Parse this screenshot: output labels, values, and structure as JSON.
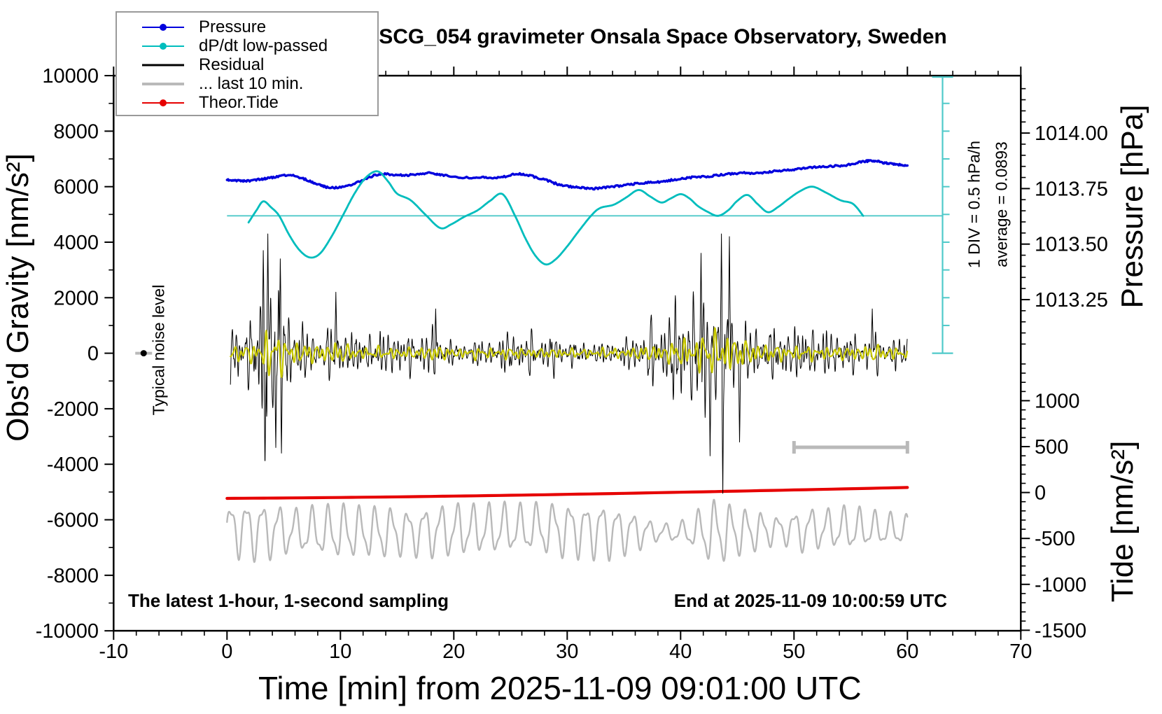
{
  "title": "SCG_054 gravimeter Onsala Space Observatory, Sweden",
  "annotations": {
    "sampling_note": "The latest 1-hour, 1-second sampling",
    "end_note": "End at 2025-11-09 10:00:59 UTC",
    "noise_label": "Typical noise level",
    "div_note": "1 DIV = 0.5 hPa/h",
    "avg_note": "average = 0.0893"
  },
  "legend": {
    "items": [
      {
        "label": "Pressure",
        "color": "#0000dd",
        "marker": true,
        "lw": 2
      },
      {
        "label": "dP/dt low-passed",
        "color": "#00bdbd",
        "marker": true,
        "lw": 2
      },
      {
        "label": "Residual",
        "color": "#000000",
        "marker": false,
        "lw": 3
      },
      {
        "label": "... last 10 min.",
        "color": "#b9b9b9",
        "marker": false,
        "lw": 4
      },
      {
        "label": "Theor.Tide",
        "color": "#e60000",
        "marker": true,
        "lw": 2
      }
    ]
  },
  "axes": {
    "x": {
      "label": "Time [min] from 2025-11-09 09:01:00 UTC",
      "min": -10,
      "max": 70,
      "major_ticks": [
        -10,
        0,
        10,
        20,
        30,
        40,
        50,
        60,
        70
      ],
      "minor_step": 2
    },
    "y_left": {
      "label": "Obs'd Gravity [nm/s²]",
      "min": -10000,
      "max": 10000,
      "major_ticks": [
        10000,
        8000,
        6000,
        4000,
        2000,
        0,
        -2000,
        -4000,
        -6000,
        -8000,
        -10000
      ],
      "minor_step": 1000
    },
    "y_right_pressure": {
      "label": "Pressure [hPa]",
      "major_ticks": [
        1014.0,
        1013.75,
        1013.5,
        1013.25
      ],
      "tick_labels": [
        "1014.00",
        "1013.75",
        "1013.50",
        "1013.25"
      ],
      "minor_step": 0.05
    },
    "y_right_tide": {
      "label": "Tide [nm/s²]",
      "major_ticks": [
        1000,
        500,
        0,
        -500,
        -1000,
        -1500
      ],
      "minor_step": 100
    }
  },
  "colors": {
    "pressure": "#0000dd",
    "dpdt": "#00bdbd",
    "dpdt_ref": "#4fc9c9",
    "residual": "#000000",
    "residual_lowpass": "#c9c900",
    "last10": "#b9b9b9",
    "theor_tide": "#e60000",
    "legend_border": "#9a9a9a"
  },
  "chart_data": {
    "type": "line",
    "title": "SCG_054 gravimeter Onsala Space Observatory, Sweden",
    "xlabel": "Time [min] from 2025-11-09 09:01:00 UTC",
    "x_range_min": [
      -10,
      70
    ],
    "gravity_axis_range": [
      -10000,
      10000
    ],
    "pressure_axis_ticks": [
      1014.0,
      1013.75,
      1013.5,
      1013.25
    ],
    "tide_axis_range": [
      -1500,
      1500
    ],
    "legend_position": "top-left",
    "grid": false,
    "seed": 54,
    "series": [
      {
        "name": "Pressure",
        "axis": "pressure",
        "unit": "hPa",
        "color": "#0000dd",
        "t": [
          0,
          1,
          2,
          3,
          4,
          5.5,
          7,
          8,
          9,
          10.5,
          12,
          13.5,
          15,
          16.5,
          18,
          19,
          21,
          22.5,
          24,
          25.5,
          26.5,
          28,
          29.5,
          31,
          32,
          33.5,
          35,
          36.5,
          38,
          39.5,
          41,
          42.5,
          44,
          45.5,
          47,
          48.5,
          50,
          51.5,
          53,
          54.5,
          56,
          57,
          58,
          59,
          60
        ],
        "values": [
          1013.79,
          1013.786,
          1013.785,
          1013.792,
          1013.8,
          1013.81,
          1013.79,
          1013.77,
          1013.755,
          1013.76,
          1013.79,
          1013.815,
          1013.81,
          1013.812,
          1013.82,
          1013.81,
          1013.8,
          1013.8,
          1013.8,
          1013.815,
          1013.81,
          1013.79,
          1013.765,
          1013.755,
          1013.75,
          1013.755,
          1013.765,
          1013.775,
          1013.78,
          1013.79,
          1013.8,
          1013.805,
          1013.815,
          1013.82,
          1013.82,
          1013.83,
          1013.835,
          1013.845,
          1013.85,
          1013.855,
          1013.87,
          1013.875,
          1013.865,
          1013.86,
          1013.85
        ]
      },
      {
        "name": "dP/dt low-passed",
        "axis": "dpdt",
        "unit": "hPa/h",
        "color": "#00bdbd",
        "reference_level": 0,
        "average": 0.0893,
        "div_value_hPa_per_h": 0.5,
        "t": [
          1.9,
          2.6,
          3.2,
          3.9,
          4.6,
          5.5,
          6.4,
          7.3,
          8.2,
          9.2,
          10.2,
          11.3,
          12.3,
          13.3,
          14.2,
          15,
          16.2,
          17.5,
          18.8,
          19.8,
          20.9,
          22.1,
          23.2,
          24.3,
          25.4,
          26.3,
          27.2,
          28.1,
          29,
          30,
          31,
          32.1,
          32.9,
          34.1,
          35.2,
          36.3,
          37.3,
          38.3,
          39.1,
          40,
          40.8,
          41.5,
          42.4,
          43.3,
          44.2,
          45,
          45.9,
          46.8,
          47.7,
          48.6,
          49.5,
          50.5,
          51.6,
          52.8,
          54.1,
          55.2,
          56.1
        ],
        "values": [
          -0.12,
          0.1,
          0.26,
          0.15,
          0,
          -0.35,
          -0.62,
          -0.75,
          -0.68,
          -0.38,
          0,
          0.42,
          0.7,
          0.8,
          0.62,
          0.4,
          0.28,
          0.02,
          -0.22,
          -0.15,
          -0.02,
          0.1,
          0.27,
          0.39,
          0,
          -0.4,
          -0.72,
          -0.875,
          -0.78,
          -0.55,
          -0.28,
          0,
          0.14,
          0.2,
          0.33,
          0.465,
          0.35,
          0.24,
          0.31,
          0.39,
          0.31,
          0.18,
          0.07,
          0,
          0.1,
          0.27,
          0.375,
          0.21,
          0.065,
          0.16,
          0.3,
          0.44,
          0.525,
          0.42,
          0.28,
          0.215,
          0
        ]
      },
      {
        "name": "Residual",
        "axis": "gravity",
        "unit": "nm/s²",
        "color": "#000000",
        "t_start": 0.3,
        "t_end": 60,
        "envelope_t": [
          0,
          1,
          2,
          2.8,
          3.2,
          3.6,
          4,
          4.6,
          5,
          5.5,
          6,
          7,
          8,
          9,
          10,
          10.5,
          11,
          12,
          13,
          14,
          15,
          16,
          17,
          18,
          18.5,
          19,
          20,
          21,
          22,
          23,
          24,
          25,
          26,
          27,
          28,
          29,
          30,
          31,
          32,
          33,
          34,
          35,
          36,
          37,
          38,
          39,
          40,
          41,
          42,
          43,
          43.6,
          44,
          44.5,
          45,
          45.5,
          46,
          47,
          48,
          49,
          50,
          51,
          52,
          53,
          54,
          55,
          56,
          57,
          57.5,
          58,
          59,
          60
        ],
        "envelope_amp": [
          1200,
          1400,
          1500,
          2000,
          3800,
          4300,
          3200,
          3500,
          3000,
          2200,
          2100,
          1700,
          1500,
          1700,
          2100,
          1500,
          1200,
          1000,
          1050,
          1000,
          950,
          900,
          950,
          1400,
          1500,
          1100,
          800,
          900,
          1000,
          900,
          900,
          1000,
          900,
          800,
          800,
          850,
          800,
          700,
          800,
          900,
          900,
          800,
          1100,
          1200,
          1500,
          1800,
          2200,
          2900,
          3300,
          3700,
          4400,
          3600,
          3100,
          2700,
          2300,
          2000,
          1700,
          1400,
          1300,
          1250,
          1150,
          1200,
          1100,
          1150,
          1100,
          1300,
          1500,
          1300,
          1200,
          1100,
          1000
        ],
        "spikes": [
          [
            3.2,
            3700
          ],
          [
            3.35,
            -4300
          ],
          [
            3.6,
            4300
          ],
          [
            4.3,
            -3400
          ],
          [
            4.7,
            3400
          ],
          [
            4.8,
            -3600
          ],
          [
            9.6,
            2200
          ],
          [
            18.4,
            1600
          ],
          [
            41.8,
            3600
          ],
          [
            42.6,
            -3700
          ],
          [
            43.6,
            4300
          ],
          [
            43.72,
            -5050
          ],
          [
            44.3,
            4200
          ],
          [
            45.2,
            -3200
          ],
          [
            56.9,
            1600
          ]
        ]
      },
      {
        "name": "Residual low-passed overlay",
        "axis": "gravity",
        "unit": "nm/s²",
        "color": "#c9c900",
        "amp_scale_of_residual": 0.22,
        "min_amp": 170
      },
      {
        "name": "... last 10 min.",
        "axis": "tide",
        "unit": "nm/s²",
        "color": "#b9b9b9",
        "mean": -415,
        "period_min": 1.42,
        "amp_t": [
          0,
          2,
          4,
          6,
          8,
          10,
          12,
          14,
          16,
          18,
          20,
          22,
          24,
          26,
          28,
          30,
          32,
          33.3,
          34,
          36,
          37,
          38,
          39,
          40,
          41,
          42,
          43,
          44,
          45,
          46,
          47,
          48,
          49,
          50,
          51,
          52,
          53,
          54,
          55,
          56,
          57,
          58,
          59,
          60
        ],
        "amp": [
          260,
          300,
          280,
          220,
          250,
          280,
          260,
          260,
          230,
          260,
          270,
          250,
          260,
          240,
          260,
          280,
          270,
          300,
          260,
          200,
          140,
          90,
          90,
          110,
          150,
          280,
          330,
          300,
          260,
          220,
          200,
          160,
          140,
          190,
          230,
          210,
          200,
          210,
          230,
          200,
          180,
          170,
          160,
          150
        ]
      },
      {
        "name": "Theor.Tide",
        "axis": "tide",
        "unit": "nm/s²",
        "color": "#e60000",
        "t": [
          0,
          10,
          20,
          30,
          40,
          50,
          60
        ],
        "values": [
          -64,
          -54,
          -39,
          -20,
          3,
          28,
          55
        ]
      }
    ],
    "markers": {
      "typical_noise_level": {
        "t": -7.35,
        "gravity": 0
      },
      "last10_scale_bar": {
        "t0": 50,
        "t1": 60,
        "gravity": -3390
      },
      "div_scale_bar": {
        "t": 63.1,
        "gravity_top": 10000,
        "gravity_bottom": 0,
        "tick_every_gravity": 1000
      }
    }
  }
}
